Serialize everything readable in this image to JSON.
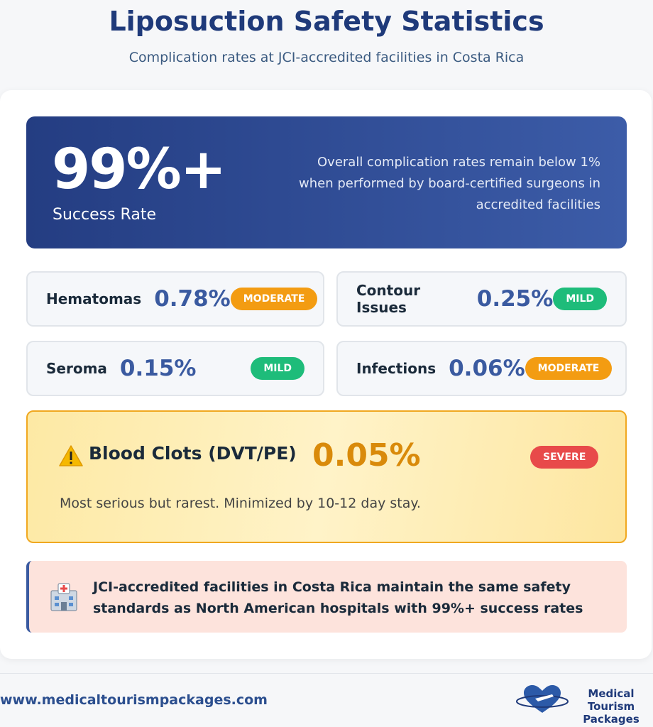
{
  "header": {
    "title": "Liposuction Safety Statistics",
    "subtitle": "Complication rates at JCI-accredited facilities in Costa Rica"
  },
  "hero": {
    "value": "99%+",
    "label": "Success Rate",
    "text": "Overall complication rates remain below 1% when performed by board-certified surgeons in accredited facilities"
  },
  "stats": [
    {
      "name": "Hematomas",
      "value": "0.78%",
      "severity": "MODERATE"
    },
    {
      "name": "Contour Issues",
      "value": "0.25%",
      "severity": "MILD"
    },
    {
      "name": "Seroma",
      "value": "0.15%",
      "severity": "MILD"
    },
    {
      "name": "Infections",
      "value": "0.06%",
      "severity": "MODERATE"
    }
  ],
  "alert": {
    "title": "Blood Clots (DVT/PE)",
    "value": "0.05%",
    "severity": "SEVERE",
    "note": "Most serious but rarest. Minimized by 10-12 day stay."
  },
  "info": {
    "text": "JCI-accredited facilities in Costa Rica maintain the same safety standards as North American hospitals with 99%+ success rates"
  },
  "footer": {
    "url": "www.medicaltourismpackages.com",
    "logo_line1": "Medical Tourism",
    "logo_line2": "Packages"
  }
}
